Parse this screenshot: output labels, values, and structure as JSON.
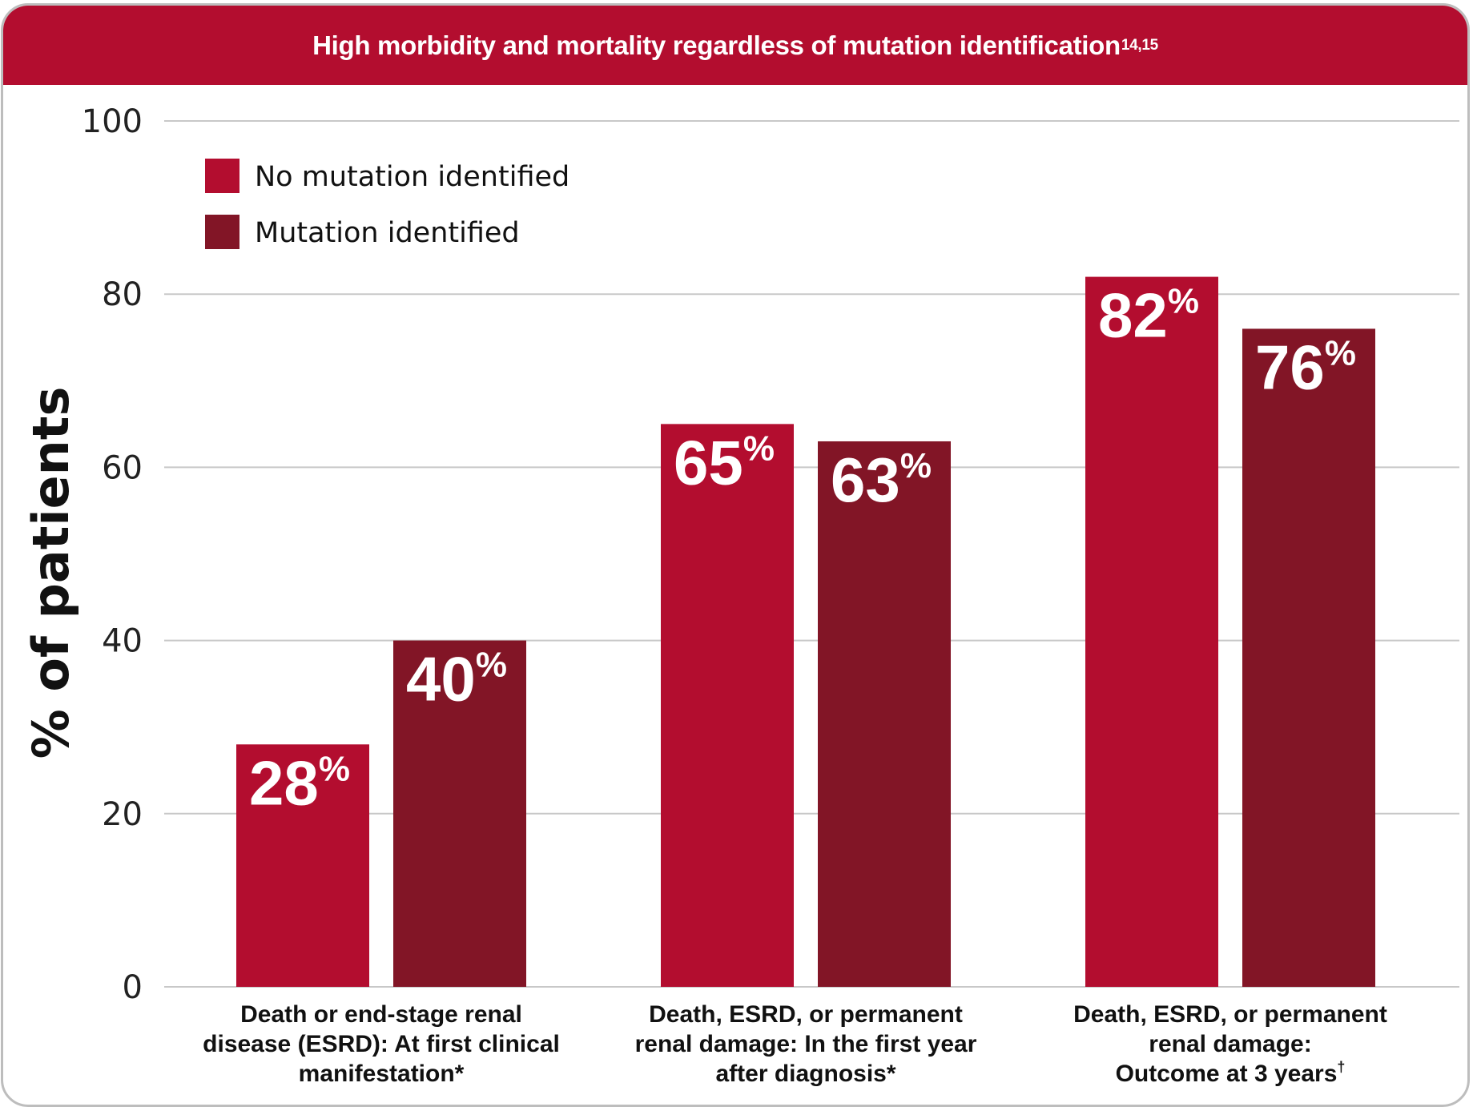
{
  "header": {
    "title": "High morbidity and mortality regardless of mutation identification",
    "superscript": "14,15"
  },
  "colors": {
    "header": "#b30d2f",
    "no_mutation": "#b30d2f",
    "mutation": "#821526",
    "gridline": "#c8c8c8"
  },
  "chart_data": {
    "type": "bar",
    "title": "High morbidity and mortality regardless of mutation identification",
    "ylabel": "% of patients",
    "xlabel": "",
    "ylim": [
      0,
      100
    ],
    "yticks": [
      "0",
      "20",
      "40",
      "60",
      "80",
      "100"
    ],
    "grid": true,
    "legend_position": "top-left",
    "categories": [
      {
        "lines": [
          "Death or end-stage renal",
          "disease (ESRD): At first clinical",
          "manifestation*"
        ]
      },
      {
        "lines": [
          "Death, ESRD, or permanent",
          "renal damage: In the first year",
          "after diagnosis*"
        ]
      },
      {
        "lines": [
          "Death, ESRD, or permanent",
          "renal damage:",
          "Outcome at 3 years"
        ],
        "superscript": "†"
      }
    ],
    "series": [
      {
        "name": "No mutation identified",
        "color": "#b30d2f",
        "values": [
          28,
          65,
          82
        ],
        "labels": [
          "28",
          "65",
          "82"
        ]
      },
      {
        "name": "Mutation identified",
        "color": "#821526",
        "values": [
          40,
          63,
          76
        ],
        "labels": [
          "40",
          "63",
          "76"
        ]
      }
    ],
    "value_suffix": "%"
  }
}
